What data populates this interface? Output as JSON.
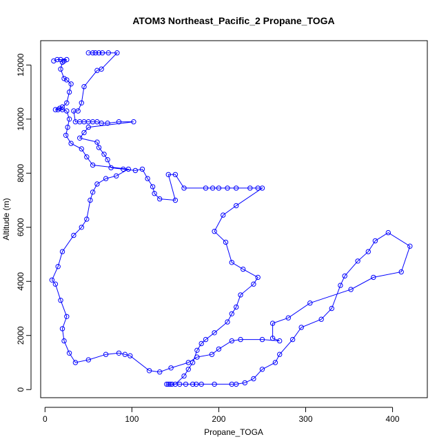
{
  "chart_data": {
    "type": "line",
    "title": "ATOM3 Northeast_Pacific_2 Propane_TOGA",
    "xlabel": "Propane_TOGA",
    "ylabel": "Altitude (m)",
    "xlim": [
      -5,
      440
    ],
    "ylim": [
      -300,
      12900
    ],
    "x_ticks": [
      0,
      100,
      200,
      300,
      400
    ],
    "y_ticks": [
      0,
      2000,
      4000,
      6000,
      8000,
      10000,
      12000
    ],
    "x_tick_labels": [
      "0",
      "100",
      "200",
      "300",
      "400"
    ],
    "y_tick_labels": [
      "0",
      "2000",
      "4000",
      "6000",
      "8000",
      "10000",
      "12000"
    ],
    "grid": false,
    "legend": "none",
    "colors": {
      "series": "#0000ff",
      "axis": "#000000"
    },
    "series": [
      {
        "marker": "open-circle",
        "points": [
          [
            50,
            12450
          ],
          [
            55,
            12450
          ],
          [
            58,
            12450
          ],
          [
            62,
            12450
          ],
          [
            66,
            12450
          ],
          [
            73,
            12450
          ],
          [
            83,
            12450
          ],
          [
            65,
            11850
          ],
          [
            60,
            11800
          ],
          [
            45,
            11200
          ],
          [
            42,
            10600
          ],
          [
            38,
            10300
          ],
          [
            33,
            10300
          ],
          [
            35,
            9900
          ],
          [
            40,
            9900
          ],
          [
            45,
            9900
          ],
          [
            50,
            9900
          ],
          [
            55,
            9900
          ],
          [
            60,
            9900
          ],
          [
            65,
            9850
          ],
          [
            72,
            9850
          ],
          [
            85,
            9900
          ],
          [
            102,
            9900
          ],
          [
            50,
            9700
          ],
          [
            45,
            9500
          ],
          [
            40,
            9300
          ],
          [
            60,
            9150
          ],
          [
            62,
            8950
          ],
          [
            68,
            8700
          ],
          [
            72,
            8500
          ],
          [
            76,
            8200
          ],
          [
            90,
            8150
          ],
          [
            104,
            8100
          ],
          [
            112,
            8150
          ],
          [
            118,
            7800
          ],
          [
            124,
            7500
          ],
          [
            126,
            7250
          ],
          [
            132,
            7050
          ],
          [
            150,
            7000
          ],
          [
            142,
            7950
          ],
          [
            150,
            7950
          ],
          [
            160,
            7450
          ],
          [
            185,
            7450
          ],
          [
            193,
            7450
          ],
          [
            200,
            7450
          ],
          [
            210,
            7450
          ],
          [
            220,
            7450
          ],
          [
            236,
            7450
          ],
          [
            245,
            7450
          ],
          [
            250,
            7450
          ],
          [
            220,
            6800
          ],
          [
            205,
            6450
          ],
          [
            195,
            5850
          ],
          [
            208,
            5450
          ],
          [
            215,
            4700
          ],
          [
            228,
            4450
          ],
          [
            245,
            4150
          ],
          [
            240,
            3900
          ],
          [
            225,
            3500
          ],
          [
            220,
            3050
          ],
          [
            215,
            2800
          ],
          [
            210,
            2500
          ],
          [
            195,
            2100
          ],
          [
            185,
            1850
          ],
          [
            180,
            1700
          ],
          [
            175,
            1450
          ],
          [
            170,
            1000
          ],
          [
            165,
            750
          ],
          [
            160,
            500
          ],
          [
            150,
            200
          ],
          [
            140,
            200
          ],
          [
            142,
            200
          ],
          [
            144,
            200
          ],
          [
            146,
            200
          ],
          [
            155,
            200
          ],
          [
            162,
            200
          ],
          [
            170,
            200
          ],
          [
            174,
            200
          ],
          [
            180,
            200
          ],
          [
            195,
            200
          ],
          [
            215,
            200
          ],
          [
            220,
            200
          ],
          [
            230,
            250
          ],
          [
            240,
            400
          ],
          [
            250,
            750
          ],
          [
            265,
            1000
          ],
          [
            270,
            1300
          ],
          [
            285,
            1850
          ],
          [
            295,
            2300
          ],
          [
            318,
            2600
          ],
          [
            330,
            3000
          ],
          [
            340,
            3850
          ],
          [
            345,
            4200
          ],
          [
            360,
            4750
          ],
          [
            372,
            5100
          ],
          [
            380,
            5500
          ],
          [
            395,
            5800
          ],
          [
            420,
            5300
          ],
          [
            410,
            4350
          ],
          [
            378,
            4150
          ],
          [
            352,
            3700
          ],
          [
            305,
            3200
          ],
          [
            280,
            2650
          ],
          [
            262,
            2450
          ],
          [
            262,
            1900
          ],
          [
            270,
            1800
          ],
          [
            250,
            1850
          ],
          [
            225,
            1850
          ],
          [
            215,
            1800
          ],
          [
            200,
            1500
          ],
          [
            192,
            1300
          ],
          [
            175,
            1200
          ],
          [
            165,
            1000
          ],
          [
            145,
            800
          ],
          [
            132,
            650
          ],
          [
            120,
            700
          ],
          [
            98,
            1250
          ],
          [
            92,
            1300
          ],
          [
            85,
            1350
          ],
          [
            70,
            1300
          ],
          [
            50,
            1100
          ],
          [
            35,
            1000
          ],
          [
            28,
            1350
          ],
          [
            22,
            1800
          ],
          [
            20,
            2250
          ],
          [
            25,
            2700
          ],
          [
            18,
            3300
          ],
          [
            12,
            3900
          ],
          [
            8,
            4050
          ],
          [
            15,
            4550
          ],
          [
            20,
            5100
          ],
          [
            33,
            5700
          ],
          [
            42,
            6000
          ],
          [
            48,
            6300
          ],
          [
            52,
            7000
          ],
          [
            55,
            7300
          ],
          [
            60,
            7600
          ],
          [
            70,
            7800
          ],
          [
            82,
            7900
          ],
          [
            96,
            8150
          ],
          [
            55,
            8300
          ],
          [
            48,
            8600
          ],
          [
            42,
            8900
          ],
          [
            30,
            9100
          ],
          [
            24,
            9400
          ],
          [
            26,
            9700
          ],
          [
            28,
            10000
          ],
          [
            25,
            10300
          ],
          [
            20,
            10350
          ],
          [
            15,
            10350
          ],
          [
            12,
            10350
          ],
          [
            17,
            10400
          ],
          [
            20,
            10450
          ],
          [
            25,
            10600
          ],
          [
            28,
            11000
          ],
          [
            30,
            11300
          ],
          [
            25,
            11450
          ],
          [
            22,
            11500
          ],
          [
            18,
            11850
          ],
          [
            20,
            12100
          ],
          [
            22,
            12150
          ],
          [
            25,
            12200
          ],
          [
            18,
            12200
          ],
          [
            14,
            12200
          ],
          [
            10,
            12150
          ]
        ]
      }
    ]
  }
}
